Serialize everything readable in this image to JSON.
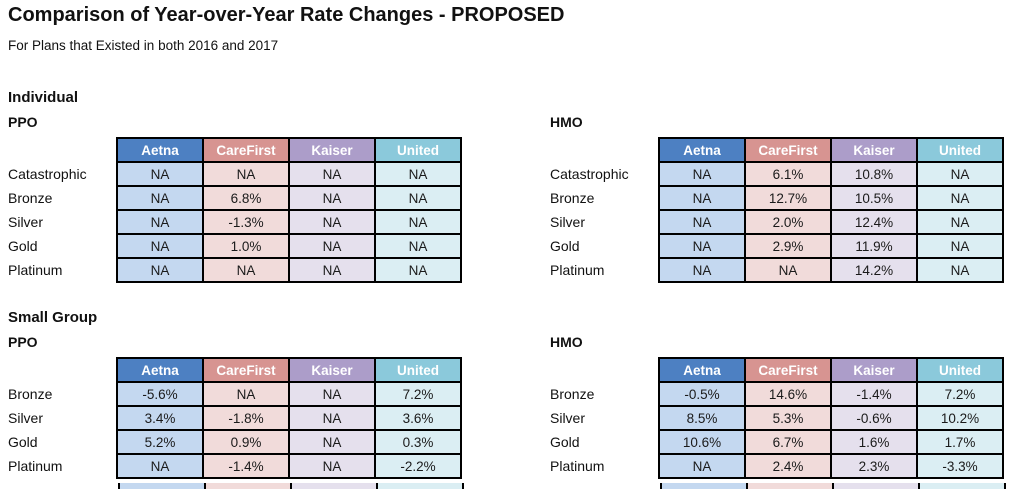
{
  "title": "Comparison of Year-over-Year Rate Changes - PROPOSED",
  "subtitle": "For Plans that Existed in both 2016 and 2017",
  "carriers": [
    "Aetna",
    "CareFirst",
    "Kaiser",
    "United"
  ],
  "colors": {
    "header_bg": [
      "#4D80C2",
      "#D79491",
      "#AC9DC9",
      "#8BC9DB"
    ],
    "header_text": "#FFFFFF",
    "cell_bg": [
      "#C4D8F0",
      "#F1DBDA",
      "#E5E0ED",
      "#DBEEF3"
    ],
    "border": "#000000"
  },
  "sections": [
    {
      "label": "Individual",
      "tables": [
        {
          "type_label": "PPO",
          "rows": [
            {
              "label": "Catastrophic",
              "values": [
                "NA",
                "NA",
                "NA",
                "NA"
              ]
            },
            {
              "label": "Bronze",
              "values": [
                "NA",
                "6.8%",
                "NA",
                "NA"
              ]
            },
            {
              "label": "Silver",
              "values": [
                "NA",
                "-1.3%",
                "NA",
                "NA"
              ]
            },
            {
              "label": "Gold",
              "values": [
                "NA",
                "1.0%",
                "NA",
                "NA"
              ]
            },
            {
              "label": "Platinum",
              "values": [
                "NA",
                "NA",
                "NA",
                "NA"
              ]
            }
          ]
        },
        {
          "type_label": "HMO",
          "rows": [
            {
              "label": "Catastrophic",
              "values": [
                "NA",
                "6.1%",
                "10.8%",
                "NA"
              ]
            },
            {
              "label": "Bronze",
              "values": [
                "NA",
                "12.7%",
                "10.5%",
                "NA"
              ]
            },
            {
              "label": "Silver",
              "values": [
                "NA",
                "2.0%",
                "12.4%",
                "NA"
              ]
            },
            {
              "label": "Gold",
              "values": [
                "NA",
                "2.9%",
                "11.9%",
                "NA"
              ]
            },
            {
              "label": "Platinum",
              "values": [
                "NA",
                "NA",
                "14.2%",
                "NA"
              ]
            }
          ]
        }
      ]
    },
    {
      "label": "Small Group",
      "tables": [
        {
          "type_label": "PPO",
          "rows": [
            {
              "label": "Bronze",
              "values": [
                "-5.6%",
                "NA",
                "NA",
                "7.2%"
              ]
            },
            {
              "label": "Silver",
              "values": [
                "3.4%",
                "-1.8%",
                "NA",
                "3.6%"
              ]
            },
            {
              "label": "Gold",
              "values": [
                "5.2%",
                "0.9%",
                "NA",
                "0.3%"
              ]
            },
            {
              "label": "Platinum",
              "values": [
                "NA",
                "-1.4%",
                "NA",
                "-2.2%"
              ]
            }
          ]
        },
        {
          "type_label": "HMO",
          "rows": [
            {
              "label": "Bronze",
              "values": [
                "-0.5%",
                "14.6%",
                "-1.4%",
                "7.2%"
              ]
            },
            {
              "label": "Silver",
              "values": [
                "8.5%",
                "5.3%",
                "-0.6%",
                "10.2%"
              ]
            },
            {
              "label": "Gold",
              "values": [
                "10.6%",
                "6.7%",
                "1.6%",
                "1.7%"
              ]
            },
            {
              "label": "Platinum",
              "values": [
                "NA",
                "2.4%",
                "2.3%",
                "-3.3%"
              ]
            }
          ]
        }
      ]
    }
  ]
}
